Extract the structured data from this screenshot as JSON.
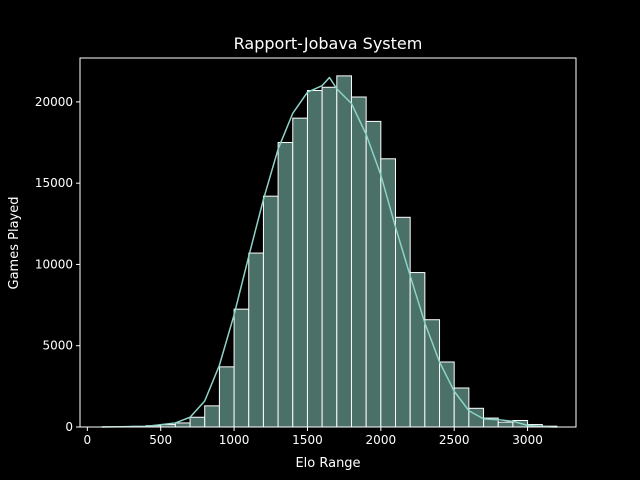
{
  "chart_data": {
    "type": "histogram",
    "title": "Rapport-Jobava System",
    "xlabel": "Elo Range",
    "ylabel": "Games Played",
    "xlim": [
      -50,
      3330
    ],
    "ylim": [
      0,
      22700
    ],
    "x_ticks": [
      0,
      500,
      1000,
      1500,
      2000,
      2500,
      3000
    ],
    "y_ticks": [
      0,
      5000,
      10000,
      15000,
      20000
    ],
    "x_tick_labels": [
      "0",
      "500",
      "1000",
      "1500",
      "2000",
      "2500",
      "3000"
    ],
    "y_tick_labels": [
      "0",
      "5000",
      "10000",
      "15000",
      "20000"
    ],
    "bin_edges": [
      100,
      200,
      300,
      400,
      500,
      600,
      700,
      800,
      900,
      1000,
      1100,
      1200,
      1300,
      1400,
      1500,
      1600,
      1700,
      1800,
      1900,
      2000,
      2100,
      2200,
      2300,
      2400,
      2500,
      2600,
      2700,
      2800,
      2900,
      3000,
      3100,
      3200
    ],
    "counts": [
      10,
      20,
      40,
      80,
      150,
      250,
      600,
      1300,
      3700,
      7250,
      10700,
      14200,
      17500,
      19000,
      20700,
      20900,
      21600,
      20300,
      18800,
      16500,
      12900,
      9500,
      6600,
      4000,
      2400,
      1150,
      550,
      300,
      400,
      150,
      50
    ],
    "kde": [
      [
        100,
        0
      ],
      [
        400,
        40
      ],
      [
        600,
        250
      ],
      [
        700,
        600
      ],
      [
        800,
        1600
      ],
      [
        900,
        3800
      ],
      [
        1000,
        6900
      ],
      [
        1100,
        10500
      ],
      [
        1200,
        14000
      ],
      [
        1300,
        17100
      ],
      [
        1400,
        19300
      ],
      [
        1500,
        20600
      ],
      [
        1600,
        21000
      ],
      [
        1650,
        21500
      ],
      [
        1700,
        20800
      ],
      [
        1800,
        19900
      ],
      [
        1900,
        18000
      ],
      [
        2000,
        15500
      ],
      [
        2100,
        12300
      ],
      [
        2200,
        9300
      ],
      [
        2300,
        6400
      ],
      [
        2400,
        4000
      ],
      [
        2500,
        2200
      ],
      [
        2600,
        1000
      ],
      [
        2700,
        500
      ],
      [
        2800,
        450
      ],
      [
        2900,
        350
      ],
      [
        3000,
        100
      ],
      [
        3100,
        20
      ],
      [
        3200,
        0
      ]
    ],
    "colors": {
      "background": "#000000",
      "bar_fill": "#4a7068",
      "bar_edge": "#ffffff",
      "kde_line": "#8dd3c7",
      "axes": "#ffffff"
    },
    "grid": false,
    "legend": "none"
  }
}
